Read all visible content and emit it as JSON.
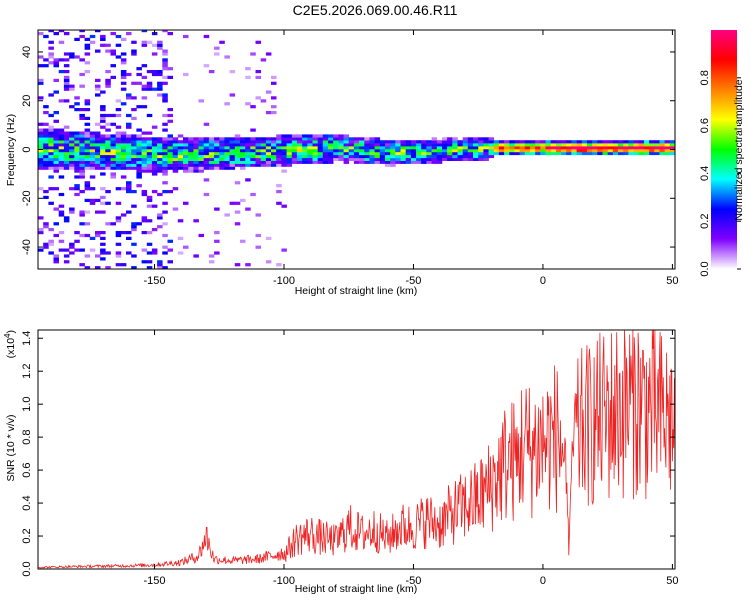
{
  "title": "C2E5.2026.069.00.46.R11",
  "chart_data": [
    {
      "type": "heatmap",
      "xlabel": "Height of straight line (km)",
      "ylabel": "Frequency (Hz)",
      "xlim": [
        -195,
        51
      ],
      "ylim": [
        -49,
        49
      ],
      "xticks": [
        -150,
        -100,
        -50,
        0,
        50
      ],
      "yticks": [
        -40,
        -20,
        0,
        20,
        40
      ],
      "colorbar": {
        "label": "Normalized spectral amplitude",
        "range": [
          0,
          1
        ],
        "ticks": [
          "0.0",
          "0.2",
          "0.4",
          "0.6",
          "0.8"
        ],
        "colors": [
          "#ffffff",
          "#8000ff",
          "#0000ff",
          "#00ffff",
          "#00ff00",
          "#ffff00",
          "#ff8000",
          "#ff0000",
          "#ff0080"
        ]
      },
      "ridge": [
        {
          "x": -195,
          "f": 0
        },
        {
          "x": -160,
          "f": -2
        },
        {
          "x": -140,
          "f": -3
        },
        {
          "x": -120,
          "f": -2
        },
        {
          "x": -100,
          "f": -1
        },
        {
          "x": -80,
          "f": 0
        },
        {
          "x": -60,
          "f": -2
        },
        {
          "x": -40,
          "f": -1
        },
        {
          "x": -20,
          "f": 0
        },
        {
          "x": 0,
          "f": 0
        },
        {
          "x": 20,
          "f": 0
        },
        {
          "x": 51,
          "f": 0
        }
      ]
    },
    {
      "type": "line",
      "xlabel": "Height of straight line (km)",
      "ylabel": "SNR (10 * v/v)",
      "y_multiplier": "(x10",
      "y_multiplier_exp": "4",
      "y_multiplier_close": ")",
      "xlim": [
        -195,
        51
      ],
      "ylim": [
        0,
        1.45
      ],
      "xticks": [
        -150,
        -100,
        -50,
        0,
        50
      ],
      "yticks": [
        "0.0",
        "0.2",
        "0.4",
        "0.6",
        "0.8",
        "1.0",
        "1.2",
        "1.4"
      ],
      "series": [
        {
          "color": "#ee2222",
          "x": [
            -195,
            -180,
            -160,
            -150,
            -140,
            -133,
            -130,
            -127,
            -120,
            -110,
            -100,
            -95,
            -90,
            -85,
            -80,
            -75,
            -70,
            -65,
            -60,
            -55,
            -50,
            -45,
            -40,
            -35,
            -30,
            -25,
            -20,
            -15,
            -12,
            -10,
            -8,
            -5,
            -2,
            0,
            5,
            8,
            10,
            12,
            15,
            20,
            25,
            30,
            35,
            40,
            45,
            50
          ],
          "values": [
            0.01,
            0.015,
            0.02,
            0.025,
            0.04,
            0.08,
            0.2,
            0.06,
            0.05,
            0.06,
            0.1,
            0.22,
            0.25,
            0.22,
            0.2,
            0.3,
            0.25,
            0.28,
            0.22,
            0.3,
            0.3,
            0.35,
            0.32,
            0.4,
            0.45,
            0.5,
            0.6,
            0.75,
            0.78,
            0.75,
            0.9,
            0.85,
            0.88,
            0.9,
            0.95,
            0.85,
            0.15,
            0.9,
            1.0,
            1.05,
            1.1,
            1.15,
            1.2,
            1.15,
            1.1,
            1.05
          ]
        }
      ]
    }
  ]
}
